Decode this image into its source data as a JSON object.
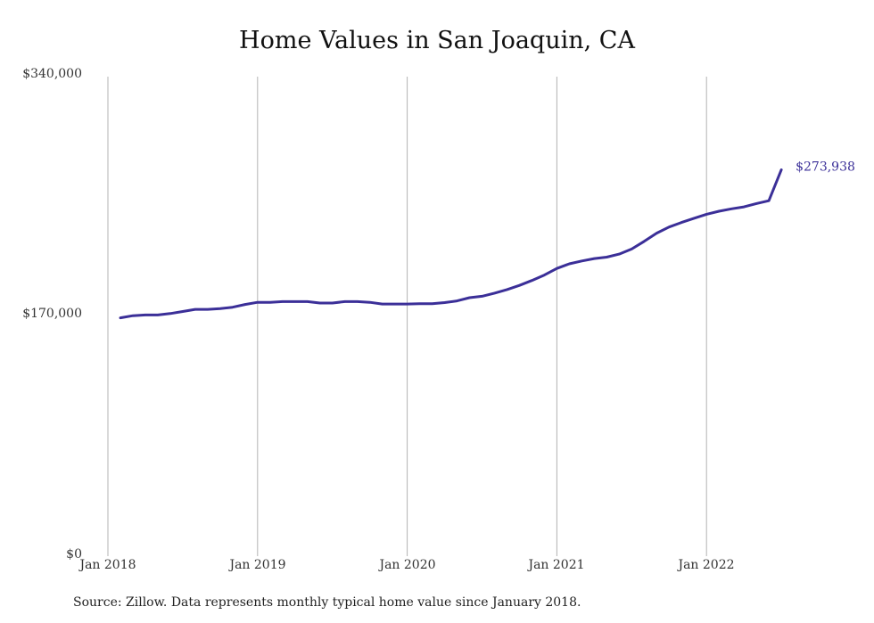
{
  "chart_data": {
    "type": "line",
    "title": "Home Values in San Joaquin, CA",
    "xlabel": "",
    "ylabel": "",
    "ylim": [
      0,
      340000
    ],
    "y_ticks": [
      "$340,000",
      "$170,000",
      "$0"
    ],
    "x_ticks": [
      "Jan 2018",
      "Jan 2019",
      "Jan 2020",
      "Jan 2021",
      "Jan 2022"
    ],
    "grid": "vertical",
    "line_color": "#3b2f98",
    "end_label": "$273,938",
    "series": [
      {
        "x": [
          "2018-02",
          "2018-03",
          "2018-04",
          "2018-05",
          "2018-06",
          "2018-07",
          "2018-08",
          "2018-09",
          "2018-10",
          "2018-11",
          "2018-12",
          "2019-01",
          "2019-02",
          "2019-03",
          "2019-04",
          "2019-05",
          "2019-06",
          "2019-07",
          "2019-08",
          "2019-09",
          "2019-10",
          "2019-11",
          "2019-12",
          "2020-01",
          "2020-02",
          "2020-03",
          "2020-04",
          "2020-05",
          "2020-06",
          "2020-07",
          "2020-08",
          "2020-09",
          "2020-10",
          "2020-11",
          "2020-12",
          "2021-01",
          "2021-02",
          "2021-03",
          "2021-04",
          "2021-05",
          "2021-06",
          "2021-07",
          "2021-08",
          "2021-09",
          "2021-10",
          "2021-11",
          "2021-12",
          "2022-01",
          "2022-02",
          "2022-03",
          "2022-04",
          "2022-05",
          "2022-06",
          "2022-07"
        ],
        "values": [
          169000,
          170500,
          171000,
          171000,
          172000,
          173500,
          175000,
          175000,
          175500,
          176500,
          178500,
          180000,
          180000,
          180500,
          180500,
          180500,
          179500,
          179500,
          180500,
          180500,
          180000,
          178800,
          178800,
          178800,
          179000,
          179000,
          179800,
          181000,
          183300,
          184300,
          186500,
          189000,
          192000,
          195500,
          199300,
          204000,
          207300,
          209300,
          211000,
          212000,
          214200,
          217800,
          223200,
          229000,
          233400,
          236600,
          239600,
          242400,
          244600,
          246300,
          247700,
          250000,
          252000,
          273938
        ]
      }
    ]
  },
  "source": "Source: Zillow. Data represents monthly typical home value since January 2018."
}
